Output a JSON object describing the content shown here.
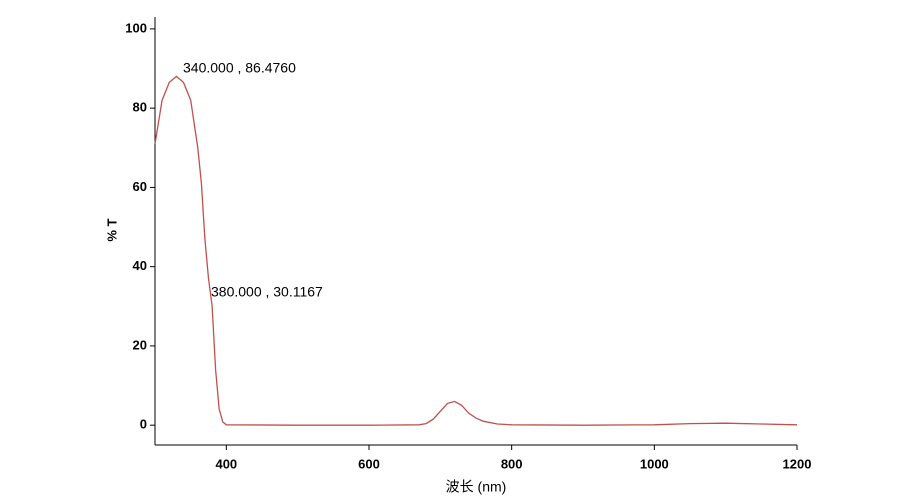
{
  "chart_data": {
    "type": "line",
    "x_label": "波长 (nm)",
    "y_label": "% T",
    "xlim": [
      300,
      1200
    ],
    "ylim": [
      -5,
      103
    ],
    "xticks": [
      400,
      600,
      800,
      1000,
      1200
    ],
    "yticks": [
      0,
      20,
      40,
      60,
      80,
      100
    ],
    "x": [
      300,
      310,
      320,
      330,
      340,
      350,
      360,
      365,
      370,
      375,
      380,
      385,
      390,
      395,
      400,
      500,
      600,
      670,
      680,
      690,
      700,
      710,
      720,
      730,
      740,
      750,
      760,
      780,
      800,
      900,
      1000,
      1050,
      1100,
      1150,
      1200
    ],
    "series": [
      {
        "color": "#c0504d",
        "values": [
          71,
          82,
          86.5,
          88,
          86.5,
          82,
          70,
          61,
          47,
          37,
          30.1,
          14,
          4,
          0.8,
          0.1,
          0,
          0,
          0.1,
          0.4,
          1.5,
          3.5,
          5.5,
          6,
          5,
          3,
          1.8,
          1,
          0.3,
          0.1,
          0,
          0.1,
          0.4,
          0.5,
          0.3,
          0.1
        ]
      }
    ],
    "annotations": [
      "340.000 , 86.4760",
      "380.000 , 30.1167"
    ]
  }
}
